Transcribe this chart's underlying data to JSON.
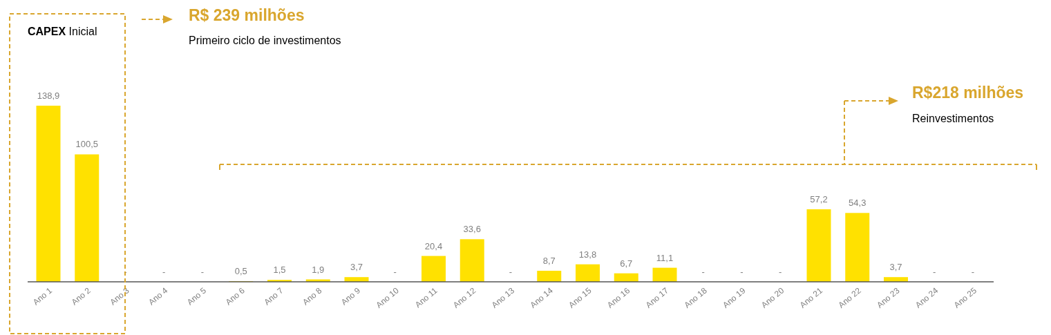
{
  "chart_data": {
    "type": "bar",
    "categories": [
      "Ano 1",
      "Ano 2",
      "Ano 3",
      "Ano 4",
      "Ano 5",
      "Ano 6",
      "Ano 7",
      "Ano 8",
      "Ano 9",
      "Ano 10",
      "Ano 11",
      "Ano 12",
      "Ano 13",
      "Ano 14",
      "Ano 15",
      "Ano 16",
      "Ano 17",
      "Ano 18",
      "Ano 19",
      "Ano 20",
      "Ano 21",
      "Ano 22",
      "Ano 23",
      "Ano 24",
      "Ano 25"
    ],
    "values": [
      138.9,
      100.5,
      0,
      0,
      0,
      0.5,
      1.5,
      1.9,
      3.7,
      0,
      20.4,
      33.6,
      0,
      8.7,
      13.8,
      6.7,
      11.1,
      0,
      0,
      0,
      57.2,
      54.3,
      3.7,
      0,
      0
    ],
    "value_labels": [
      "138,9",
      "100,5",
      "-",
      "-",
      "-",
      "0,5",
      "1,5",
      "1,9",
      "3,7",
      "-",
      "20,4",
      "33,6",
      "-",
      "8,7",
      "13,8",
      "6,7",
      "11,1",
      "-",
      "-",
      "-",
      "57,2",
      "54,3",
      "3,7",
      "-",
      "-"
    ],
    "color": "#ffe100",
    "annotations": [
      "CAPEX Inicial",
      "R$ 239 milhões",
      "Primeiro ciclo de investimentos",
      "R$218 milhões",
      "Reinvestimentos"
    ],
    "grid": false
  }
}
